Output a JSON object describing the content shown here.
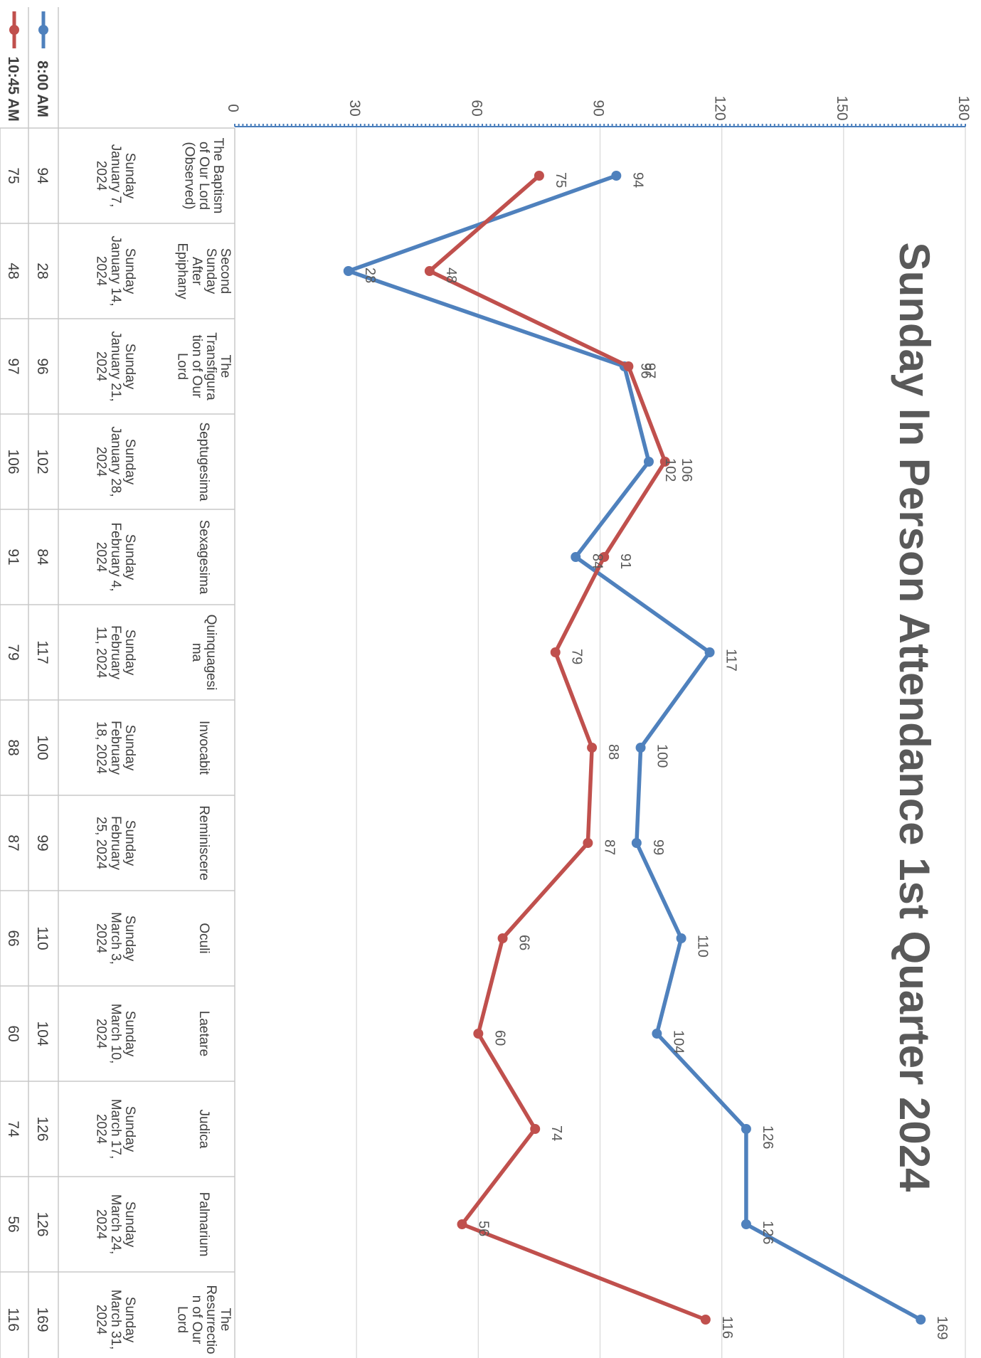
{
  "chart_data": {
    "type": "line",
    "title": "Sunday In Person Attendance 1st Quarter 2024",
    "ylim": [
      0,
      180
    ],
    "yticks": [
      0,
      30,
      60,
      90,
      120,
      150,
      180
    ],
    "gridlines": true,
    "legend": "left of data table",
    "categories": [
      [
        "The Baptism of Our Lord (Observed)",
        "Sunday January 7, 2024"
      ],
      [
        "Second Sunday After Epiphany",
        "Sunday January 14, 2024"
      ],
      [
        "The Transfiguration of Our Lord",
        "Sunday January 21, 2024"
      ],
      [
        "Septugesima",
        "Sunday January 28, 2024"
      ],
      [
        "Sexagesima",
        "Sunday February 4, 2024"
      ],
      [
        "Quinquagesima",
        "Sunday February 11, 2024"
      ],
      [
        "Invocabit",
        "Sunday February 18, 2024"
      ],
      [
        "Reminiscere",
        "Sunday February 25, 2024"
      ],
      [
        "Oculi",
        "Sunday March 3, 2024"
      ],
      [
        "Laetare",
        "Sunday March 10, 2024"
      ],
      [
        "Judica",
        "Sunday March 17, 2024"
      ],
      [
        "Palmarium",
        "Sunday March 24, 2024"
      ],
      [
        "The Resurrection of Our Lord",
        "Sunday March 31, 2024"
      ]
    ],
    "series": [
      {
        "name": "8:00 AM",
        "color": "#4f81bd",
        "values": [
          94,
          28,
          96,
          102,
          84,
          117,
          100,
          99,
          110,
          104,
          126,
          126,
          169
        ]
      },
      {
        "name": "10:45 AM",
        "color": "#c0504d",
        "values": [
          75,
          48,
          97,
          106,
          91,
          79,
          88,
          87,
          66,
          60,
          74,
          56,
          116
        ]
      }
    ]
  }
}
